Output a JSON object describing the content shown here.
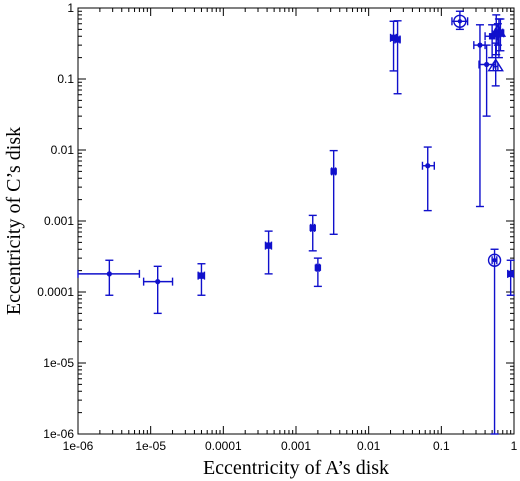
{
  "chart_data": {
    "type": "scatter",
    "title": "",
    "xlabel": "Eccentricity of A’s disk",
    "ylabel": "Eccentricity of C’s disk",
    "xscale": "log",
    "yscale": "log",
    "xlim": [
      1e-06,
      1
    ],
    "ylim": [
      1e-06,
      1
    ],
    "x_ticks": [
      1e-06,
      1e-05,
      0.0001,
      0.001,
      0.01,
      0.1,
      1
    ],
    "x_tick_labels": [
      "1e-06",
      "1e-05",
      "0.0001",
      "0.001",
      "0.01",
      "0.1",
      "1"
    ],
    "y_ticks": [
      1e-06,
      1e-05,
      0.0001,
      0.001,
      0.01,
      0.1,
      1
    ],
    "y_tick_labels": [
      "1e-06",
      "1e-05",
      "0.0001",
      "0.001",
      "0.01",
      "0.1",
      "1"
    ],
    "grid": false,
    "legend": "none",
    "color": "#1010cc",
    "series": [
      {
        "marker": "circle",
        "points": [
          {
            "x": 2.7e-06,
            "y": 0.00018,
            "xerr": [
              1e-06,
              7e-06
            ],
            "yerr": [
              9e-05,
              0.00028
            ]
          },
          {
            "x": 1.25e-05,
            "y": 0.00014,
            "xerr": [
              8e-06,
              2e-05
            ],
            "yerr": [
              5e-05,
              0.00023
            ]
          },
          {
            "x": 0.065,
            "y": 0.006,
            "xerr": [
              0.055,
              0.08
            ],
            "yerr": [
              0.0014,
              0.011
            ]
          },
          {
            "x": 0.34,
            "y": 0.3,
            "xerr": [
              0.28,
              0.4
            ],
            "yerr": [
              0.0016,
              0.58
            ]
          },
          {
            "x": 0.42,
            "y": 0.16,
            "xerr": [
              0.33,
              0.55
            ],
            "yerr": [
              0.03,
              0.3
            ]
          }
        ]
      },
      {
        "marker": "square",
        "points": [
          {
            "x": 5e-05,
            "y": 0.00017,
            "xerr": [
              4.5e-05,
              5.5e-05
            ],
            "yerr": [
              9e-05,
              0.00025
            ]
          },
          {
            "x": 0.00042,
            "y": 0.00045,
            "xerr": [
              0.00038,
              0.00046
            ],
            "yerr": [
              0.00018,
              0.00072
            ]
          },
          {
            "x": 0.0017,
            "y": 0.0008,
            "xerr": [
              0.0016,
              0.0018
            ],
            "yerr": [
              0.00038,
              0.0012
            ]
          },
          {
            "x": 0.002,
            "y": 0.00022,
            "xerr": [
              0.0019,
              0.0021
            ],
            "yerr": [
              0.00012,
              0.0003
            ]
          },
          {
            "x": 0.0033,
            "y": 0.005,
            "xerr": [
              0.0031,
              0.0035
            ],
            "yerr": [
              0.00065,
              0.0098
            ]
          },
          {
            "x": 0.022,
            "y": 0.38,
            "xerr": [
              0.02,
              0.024
            ],
            "yerr": [
              0.13,
              0.65
            ]
          },
          {
            "x": 0.025,
            "y": 0.36,
            "xerr": [
              0.023,
              0.027
            ],
            "yerr": [
              0.062,
              0.66
            ]
          },
          {
            "x": 0.5,
            "y": 0.4,
            "xerr": [
              0.4,
              0.58
            ],
            "yerr": [
              0.2,
              0.58
            ]
          },
          {
            "x": 0.57,
            "y": 0.43,
            "xerr": [
              0.5,
              0.65
            ],
            "yerr": [
              0.22,
              0.8
            ]
          },
          {
            "x": 0.62,
            "y": 0.45,
            "xerr": [
              0.55,
              0.7
            ],
            "yerr": [
              0.2,
              0.7
            ]
          },
          {
            "x": 0.65,
            "y": 0.44,
            "xerr": [
              0.6,
              0.72
            ],
            "yerr": [
              0.25,
              0.7
            ]
          },
          {
            "x": 0.9,
            "y": 0.00018,
            "xerr": [
              0.82,
              0.98
            ],
            "yerr": [
              9e-05,
              0.00028
            ]
          }
        ]
      },
      {
        "marker": "open-circle",
        "points": [
          {
            "x": 0.54,
            "y": 0.00028,
            "xerr": [
              0.5,
              0.58
            ],
            "yerr": [
              1e-06,
              0.0004
            ]
          },
          {
            "x": 0.18,
            "y": 0.65,
            "xerr": [
              0.14,
              0.23
            ],
            "yerr": [
              0.5,
              0.9
            ]
          }
        ]
      },
      {
        "marker": "open-triangle",
        "points": [
          {
            "x": 0.56,
            "y": 0.15,
            "xerr": [
              0.52,
              0.6
            ],
            "yerr": [
              0.08,
              0.32
            ]
          },
          {
            "x": 0.6,
            "y": 0.46,
            "xerr": [
              0.56,
              0.64
            ],
            "yerr": [
              0.3,
              0.6
            ]
          }
        ]
      }
    ]
  }
}
